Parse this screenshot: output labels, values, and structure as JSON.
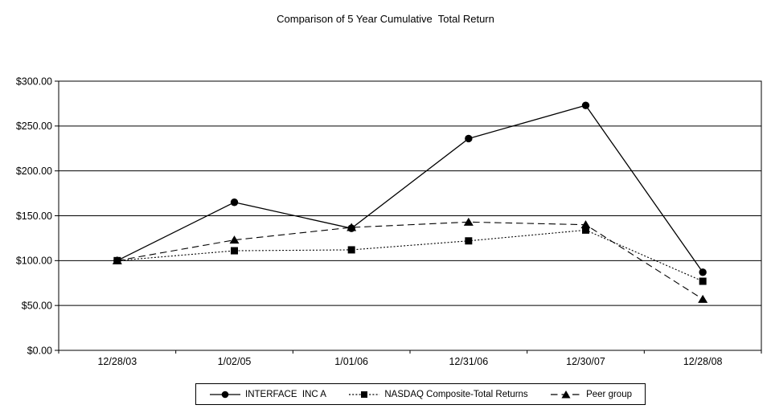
{
  "title": "Comparison of 5 Year Cumulative  Total Return",
  "chart_data": {
    "type": "line",
    "title": "Comparison of 5 Year Cumulative  Total Return",
    "categories": [
      "12/28/03",
      "1/02/05",
      "1/01/06",
      "12/31/06",
      "12/30/07",
      "12/28/08"
    ],
    "series": [
      {
        "name": "INTERFACE  INC A",
        "marker": "circle",
        "line_style": "solid",
        "values": [
          100,
          165,
          136,
          236,
          273,
          87
        ]
      },
      {
        "name": "NASDAQ Composite-Total Returns",
        "marker": "square",
        "line_style": "dotted",
        "values": [
          100,
          111,
          112,
          122,
          134,
          77
        ]
      },
      {
        "name": "Peer group",
        "marker": "triangle",
        "line_style": "dashed",
        "values": [
          100,
          123,
          137,
          143,
          140,
          57
        ]
      }
    ],
    "ytick_values": [
      0,
      50,
      100,
      150,
      200,
      250,
      300
    ],
    "ytick_labels": [
      "$0.00",
      "$50.00",
      "$100.00",
      "$150.00",
      "$200.00",
      "$250.00",
      "$300.00"
    ],
    "ylim": [
      0,
      300
    ],
    "grid": true,
    "legend_position": "bottom",
    "line_color": "#000000",
    "background": "#ffffff"
  }
}
